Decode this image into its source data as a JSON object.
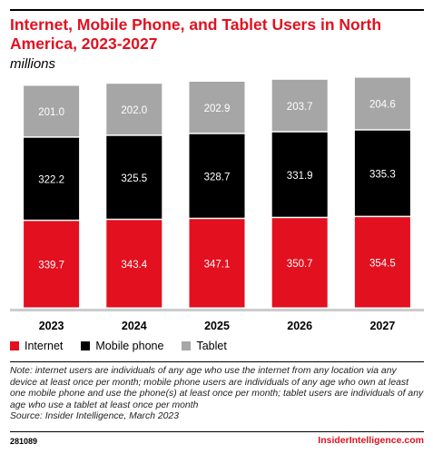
{
  "title": "Internet, Mobile Phone, and Tablet Users in North America, 2023-2027",
  "subtitle": "millions",
  "note": "Note: internet users are individuals of any age who use the internet from any location via any device at least once per month; mobile phone users are individuals of any age who own at least one mobile phone and use the phone(s) at least once per month; tablet users are individuals of any age who use a tablet at least once per month",
  "source": "Source: Insider Intelligence, March 2023",
  "footer": {
    "id": "281089",
    "brand": "InsiderIntelligence.com"
  },
  "chart_data": {
    "type": "bar",
    "stacked": true,
    "categories": [
      "2023",
      "2024",
      "2025",
      "2026",
      "2027"
    ],
    "series": [
      {
        "name": "Internet",
        "color": "#e3101f",
        "values": [
          339.7,
          343.4,
          347.1,
          350.7,
          354.5
        ],
        "labels": [
          "339.7",
          "343.4",
          "347.1",
          "350.7",
          "354.5"
        ],
        "label_color": "#ffffff"
      },
      {
        "name": "Mobile phone",
        "color": "#000000",
        "values": [
          322.2,
          325.5,
          328.7,
          331.9,
          335.3
        ],
        "labels": [
          "322.2",
          "325.5",
          "328.7",
          "331.9",
          "335.3"
        ],
        "label_color": "#ffffff"
      },
      {
        "name": "Tablet",
        "color": "#a6a6a6",
        "values": [
          201.0,
          202.0,
          202.9,
          203.7,
          204.6
        ],
        "labels": [
          "201.0",
          "202.0",
          "202.9",
          "203.7",
          "204.6"
        ],
        "label_color": "#ffffff"
      }
    ],
    "ylim": [
      0,
      900
    ],
    "grid": false,
    "legend_position": "bottom-left"
  }
}
